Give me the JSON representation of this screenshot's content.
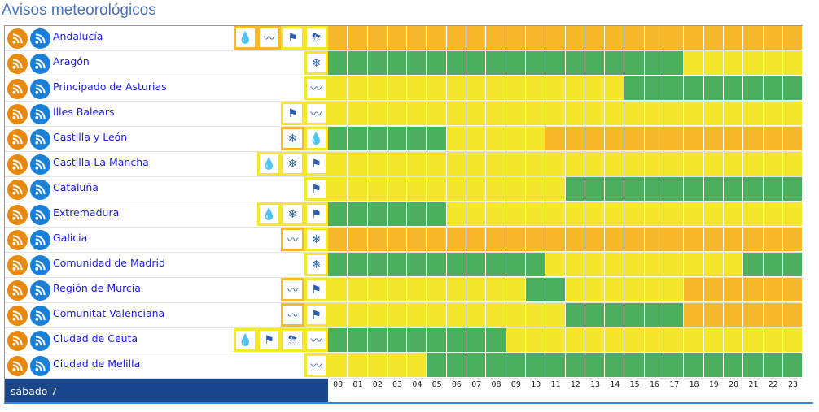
{
  "title": "Avisos meteorológicos",
  "colors": {
    "g": "#4caf5f",
    "y": "#f5e72b",
    "o": "#f7b92b",
    "rss_orange": "#e8890c",
    "rss_blue": "#1a7fd6"
  },
  "icon_glyphs": {
    "rain": "💧",
    "coast": "〰",
    "wind": "⚑",
    "storm": "⛈",
    "snow": "❄"
  },
  "regions": [
    {
      "name": "Andalucía",
      "warnings": [
        [
          "rain",
          "o"
        ],
        [
          "coast",
          "o"
        ],
        [
          "wind",
          "y"
        ],
        [
          "storm",
          "y"
        ]
      ],
      "hours": "oooooooooooooooooooooooo"
    },
    {
      "name": "Aragón",
      "warnings": [
        [
          "snow",
          "y"
        ]
      ],
      "hours": "ggggggggggggggggggyyyyyy"
    },
    {
      "name": "Principado de Asturias",
      "warnings": [
        [
          "coast",
          "y"
        ]
      ],
      "hours": "yyyyyyyyyyyyyyyggggggggg"
    },
    {
      "name": "Illes Balears",
      "warnings": [
        [
          "wind",
          "y"
        ],
        [
          "coast",
          "y"
        ]
      ],
      "hours": "yyyyyyyyyyyyyyyyyyyyyyyy"
    },
    {
      "name": "Castilla y León",
      "warnings": [
        [
          "snow",
          "o"
        ],
        [
          "rain",
          "y"
        ]
      ],
      "hours": "ggggggyyyyyooooooooooooo"
    },
    {
      "name": "Castilla-La Mancha",
      "warnings": [
        [
          "rain",
          "y"
        ],
        [
          "snow",
          "y"
        ],
        [
          "wind",
          "y"
        ]
      ],
      "hours": "yyyyyyyyyyyyyyyyyyyyyyyy"
    },
    {
      "name": "Cataluña",
      "warnings": [
        [
          "wind",
          "y"
        ]
      ],
      "hours": "yyyyyyyyyyyygggggggggggg"
    },
    {
      "name": "Extremadura",
      "warnings": [
        [
          "rain",
          "y"
        ],
        [
          "snow",
          "y"
        ],
        [
          "wind",
          "y"
        ]
      ],
      "hours": "ggggggyyyyyyyyyyyyyyyyyy"
    },
    {
      "name": "Galicia",
      "warnings": [
        [
          "coast",
          "o"
        ],
        [
          "snow",
          "y"
        ]
      ],
      "hours": "oooooooooooooooooooooooo"
    },
    {
      "name": "Comunidad de Madrid",
      "warnings": [
        [
          "snow",
          "y"
        ]
      ],
      "hours": "gggggggggggyyyyyyyyyyggg"
    },
    {
      "name": "Región de Murcia",
      "warnings": [
        [
          "coast",
          "o"
        ],
        [
          "wind",
          "y"
        ]
      ],
      "hours": "yyyyyyyyyyggyyyyyyoooooo"
    },
    {
      "name": "Comunitat Valenciana",
      "warnings": [
        [
          "coast",
          "o"
        ],
        [
          "wind",
          "y"
        ]
      ],
      "hours": "yyyyyyyyyyyyggggggoooooo"
    },
    {
      "name": "Ciudad de Ceuta",
      "warnings": [
        [
          "rain",
          "y"
        ],
        [
          "wind",
          "y"
        ],
        [
          "storm",
          "y"
        ],
        [
          "coast",
          "y"
        ]
      ],
      "hours": "gggggggggyyyyyyyyyyyyyyy"
    },
    {
      "name": "Ciudad de Melilla",
      "warnings": [
        [
          "coast",
          "y"
        ]
      ],
      "hours": "yyyyyggggggggggggggggggg"
    }
  ],
  "footer": {
    "day": "sábado 7",
    "hours": [
      "00",
      "01",
      "02",
      "03",
      "04",
      "05",
      "06",
      "07",
      "08",
      "09",
      "10",
      "11",
      "12",
      "13",
      "14",
      "15",
      "16",
      "17",
      "18",
      "19",
      "20",
      "21",
      "22",
      "23"
    ]
  }
}
